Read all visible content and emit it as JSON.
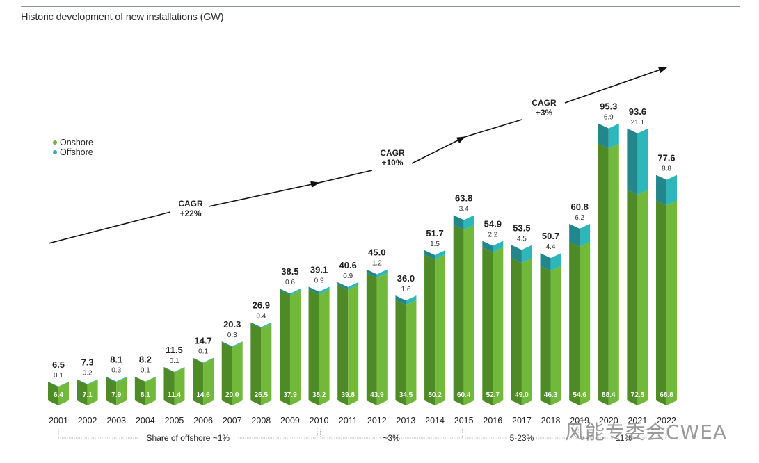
{
  "title": "Historic development of new installations (GW)",
  "legend": [
    {
      "label": "Onshore",
      "color": "#79b13c"
    },
    {
      "label": "Offshore",
      "color": "#2fb0b4"
    }
  ],
  "colors": {
    "onshore_left": "#4e8a25",
    "onshore_right": "#72b83a",
    "offshore_left": "#23868a",
    "offshore_right": "#2db7bb",
    "arrow": "#111111"
  },
  "chart_data": {
    "type": "bar",
    "stacked": true,
    "title": "Historic development of new installations (GW)",
    "xlabel": "",
    "ylabel": "GW",
    "categories": [
      "2001",
      "2002",
      "2003",
      "2004",
      "2005",
      "2006",
      "2007",
      "2008",
      "2009",
      "2010",
      "2011",
      "2012",
      "2013",
      "2014",
      "2015",
      "2016",
      "2017",
      "2018",
      "2019",
      "2020",
      "2021",
      "2022"
    ],
    "series": [
      {
        "name": "Onshore",
        "values": [
          6.4,
          7.1,
          7.9,
          8.1,
          11.4,
          14.6,
          20.0,
          26.5,
          37.9,
          38.2,
          39.8,
          43.9,
          34.5,
          50.2,
          60.4,
          52.7,
          49.0,
          46.3,
          54.6,
          88.4,
          72.5,
          68.8
        ]
      },
      {
        "name": "Offshore",
        "values": [
          0.1,
          0.2,
          0.3,
          0.1,
          0.1,
          0.1,
          0.3,
          0.4,
          0.6,
          0.9,
          0.9,
          1.2,
          1.6,
          1.5,
          3.4,
          2.2,
          4.5,
          4.4,
          6.2,
          6.9,
          21.1,
          8.8
        ]
      }
    ],
    "totals": [
      6.5,
      7.3,
      8.1,
      8.2,
      11.5,
      14.7,
      20.3,
      26.9,
      38.5,
      39.1,
      40.6,
      45.0,
      36.0,
      51.7,
      63.8,
      54.9,
      53.5,
      50.7,
      60.8,
      95.3,
      93.6,
      77.6
    ],
    "onshore_labels": [
      "6.4",
      "7.1",
      "7.9",
      "8.1",
      "11.4",
      "14.6",
      "20.0",
      "26.5",
      "37.9",
      "38.2",
      "39.8",
      "43.9",
      "34.5",
      "50.2",
      "60.4",
      "52.7",
      "49.0",
      "46.3",
      "54.6",
      "88.4",
      "72.5",
      "68.8"
    ],
    "offshore_labels": [
      "0.1",
      "0.2",
      "0.3",
      "0.1",
      "0.1",
      "0.1",
      "0.3",
      "0.4",
      "0.6",
      "0.9",
      "0.9",
      "1.2",
      "1.6",
      "1.5",
      "3.4",
      "2.2",
      "4.5",
      "4.4",
      "6.2",
      "6.9",
      "21.1",
      "8.8"
    ],
    "total_labels": [
      "6.5",
      "7.3",
      "8.1",
      "8.2",
      "11.5",
      "14.7",
      "20.3",
      "26.9",
      "38.5",
      "39.1",
      "40.6",
      "45.0",
      "36.0",
      "51.7",
      "63.8",
      "54.9",
      "53.5",
      "50.7",
      "60.8",
      "95.3",
      "93.6",
      "77.6"
    ],
    "ylim": [
      0,
      100
    ],
    "grid": false,
    "legend_position": "left",
    "annotations": {
      "cagr": [
        {
          "line1": "CAGR",
          "line2": "+22%",
          "from": "2001",
          "to": "2010"
        },
        {
          "line1": "CAGR",
          "line2": "+10%",
          "from": "2010",
          "to": "2015"
        },
        {
          "line1": "CAGR",
          "line2": "+3%",
          "from": "2015",
          "to": "2022"
        }
      ],
      "offshore_share": [
        {
          "label": "Share of offshore ~1%",
          "from": "2001",
          "to": "2010"
        },
        {
          "label": "~3%",
          "from": "2010",
          "to": "2015"
        },
        {
          "label": "5-23%",
          "from": "2015",
          "to": "2019"
        },
        {
          "label": "11%",
          "from": "2019",
          "to": "2022"
        }
      ]
    }
  },
  "watermark": "风能专委会CWEA"
}
